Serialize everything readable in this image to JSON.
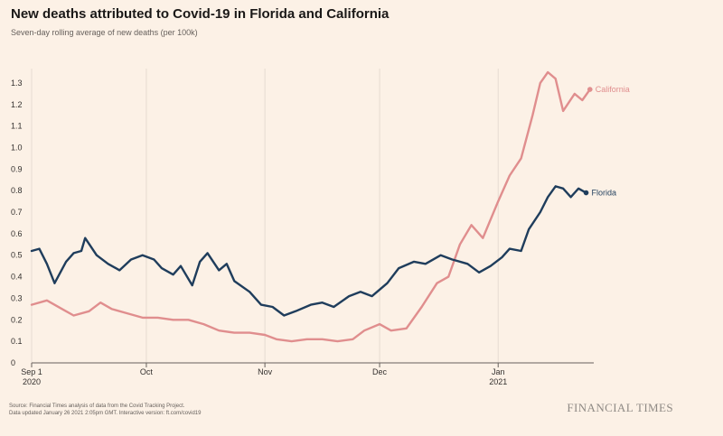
{
  "header": {
    "title": "New deaths attributed to Covid-19 in Florida and California",
    "subtitle": "Seven-day rolling average of new deaths (per 100k)"
  },
  "footer": {
    "source_line1": "Source: Financial Times analysis of data from the Covid Tracking Project.",
    "source_line2": "Data updated January 26 2021 2:05pm GMT. Interactive version: ft.com/covid19",
    "brand": "FINANCIAL TIMES"
  },
  "colors": {
    "background": "#fcf1e6",
    "grid": "#e6dbd1",
    "axis": "#66605c",
    "california": "#e08e8e",
    "florida": "#1f3d5c"
  },
  "chart_data": {
    "type": "line",
    "title": "New deaths attributed to Covid-19 in Florida and California",
    "subtitle": "Seven-day rolling average of new deaths (per 100k)",
    "ylabel": "",
    "xlabel": "",
    "ylim": [
      0,
      1.35
    ],
    "yticks": [
      0,
      0.1,
      0.2,
      0.3,
      0.4,
      0.5,
      0.6,
      0.7,
      0.8,
      0.9,
      1.0,
      1.1,
      1.2,
      1.3
    ],
    "ytick_labels": [
      "0",
      "0.1",
      "0.2",
      "0.3",
      "0.4",
      "0.5",
      "0.6",
      "0.7",
      "0.8",
      "0.9",
      "1.0",
      "1.1",
      "1.2",
      "1.3"
    ],
    "xlim": [
      "2020-09-01",
      "2021-01-26"
    ],
    "xticks": [
      {
        "date": "2020-09-01",
        "label": "Sep 1",
        "sublabel": "2020"
      },
      {
        "date": "2020-10-01",
        "label": "Oct",
        "sublabel": ""
      },
      {
        "date": "2020-11-01",
        "label": "Nov",
        "sublabel": ""
      },
      {
        "date": "2020-12-01",
        "label": "Dec",
        "sublabel": ""
      },
      {
        "date": "2021-01-01",
        "label": "Jan",
        "sublabel": "2021"
      }
    ],
    "grid": "vertical",
    "series": [
      {
        "name": "California",
        "color": "#e08e8e",
        "end_label": "California",
        "points": [
          [
            "2020-09-01",
            0.27
          ],
          [
            "2020-09-05",
            0.29
          ],
          [
            "2020-09-09",
            0.25
          ],
          [
            "2020-09-12",
            0.22
          ],
          [
            "2020-09-16",
            0.24
          ],
          [
            "2020-09-19",
            0.28
          ],
          [
            "2020-09-22",
            0.25
          ],
          [
            "2020-09-26",
            0.23
          ],
          [
            "2020-09-30",
            0.21
          ],
          [
            "2020-10-04",
            0.21
          ],
          [
            "2020-10-08",
            0.2
          ],
          [
            "2020-10-12",
            0.2
          ],
          [
            "2020-10-16",
            0.18
          ],
          [
            "2020-10-20",
            0.15
          ],
          [
            "2020-10-24",
            0.14
          ],
          [
            "2020-10-28",
            0.14
          ],
          [
            "2020-11-01",
            0.13
          ],
          [
            "2020-11-04",
            0.11
          ],
          [
            "2020-11-08",
            0.1
          ],
          [
            "2020-11-12",
            0.11
          ],
          [
            "2020-11-16",
            0.11
          ],
          [
            "2020-11-20",
            0.1
          ],
          [
            "2020-11-24",
            0.11
          ],
          [
            "2020-11-27",
            0.15
          ],
          [
            "2020-12-01",
            0.18
          ],
          [
            "2020-12-04",
            0.15
          ],
          [
            "2020-12-08",
            0.16
          ],
          [
            "2020-12-12",
            0.26
          ],
          [
            "2020-12-16",
            0.37
          ],
          [
            "2020-12-19",
            0.4
          ],
          [
            "2020-12-22",
            0.55
          ],
          [
            "2020-12-25",
            0.64
          ],
          [
            "2020-12-28",
            0.58
          ],
          [
            "2021-01-01",
            0.75
          ],
          [
            "2021-01-04",
            0.87
          ],
          [
            "2021-01-07",
            0.95
          ],
          [
            "2021-01-10",
            1.15
          ],
          [
            "2021-01-12",
            1.3
          ],
          [
            "2021-01-14",
            1.35
          ],
          [
            "2021-01-16",
            1.32
          ],
          [
            "2021-01-18",
            1.17
          ],
          [
            "2021-01-21",
            1.25
          ],
          [
            "2021-01-23",
            1.22
          ],
          [
            "2021-01-25",
            1.27
          ]
        ]
      },
      {
        "name": "Florida",
        "color": "#1f3d5c",
        "end_label": "Florida",
        "points": [
          [
            "2020-09-01",
            0.52
          ],
          [
            "2020-09-03",
            0.53
          ],
          [
            "2020-09-05",
            0.46
          ],
          [
            "2020-09-07",
            0.37
          ],
          [
            "2020-09-10",
            0.47
          ],
          [
            "2020-09-12",
            0.51
          ],
          [
            "2020-09-14",
            0.52
          ],
          [
            "2020-09-15",
            0.58
          ],
          [
            "2020-09-18",
            0.5
          ],
          [
            "2020-09-21",
            0.46
          ],
          [
            "2020-09-24",
            0.43
          ],
          [
            "2020-09-27",
            0.48
          ],
          [
            "2020-09-30",
            0.5
          ],
          [
            "2020-10-03",
            0.48
          ],
          [
            "2020-10-05",
            0.44
          ],
          [
            "2020-10-08",
            0.41
          ],
          [
            "2020-10-10",
            0.45
          ],
          [
            "2020-10-13",
            0.36
          ],
          [
            "2020-10-15",
            0.47
          ],
          [
            "2020-10-17",
            0.51
          ],
          [
            "2020-10-20",
            0.43
          ],
          [
            "2020-10-22",
            0.46
          ],
          [
            "2020-10-24",
            0.38
          ],
          [
            "2020-10-28",
            0.33
          ],
          [
            "2020-10-31",
            0.27
          ],
          [
            "2020-11-03",
            0.26
          ],
          [
            "2020-11-06",
            0.22
          ],
          [
            "2020-11-09",
            0.24
          ],
          [
            "2020-11-13",
            0.27
          ],
          [
            "2020-11-16",
            0.28
          ],
          [
            "2020-11-19",
            0.26
          ],
          [
            "2020-11-23",
            0.31
          ],
          [
            "2020-11-26",
            0.33
          ],
          [
            "2020-11-29",
            0.31
          ],
          [
            "2020-12-03",
            0.37
          ],
          [
            "2020-12-06",
            0.44
          ],
          [
            "2020-12-10",
            0.47
          ],
          [
            "2020-12-13",
            0.46
          ],
          [
            "2020-12-17",
            0.5
          ],
          [
            "2020-12-20",
            0.48
          ],
          [
            "2020-12-24",
            0.46
          ],
          [
            "2020-12-27",
            0.42
          ],
          [
            "2020-12-30",
            0.45
          ],
          [
            "2021-01-02",
            0.49
          ],
          [
            "2021-01-04",
            0.53
          ],
          [
            "2021-01-07",
            0.52
          ],
          [
            "2021-01-09",
            0.62
          ],
          [
            "2021-01-12",
            0.7
          ],
          [
            "2021-01-14",
            0.77
          ],
          [
            "2021-01-16",
            0.82
          ],
          [
            "2021-01-18",
            0.81
          ],
          [
            "2021-01-20",
            0.77
          ],
          [
            "2021-01-22",
            0.81
          ],
          [
            "2021-01-24",
            0.79
          ]
        ]
      }
    ]
  }
}
